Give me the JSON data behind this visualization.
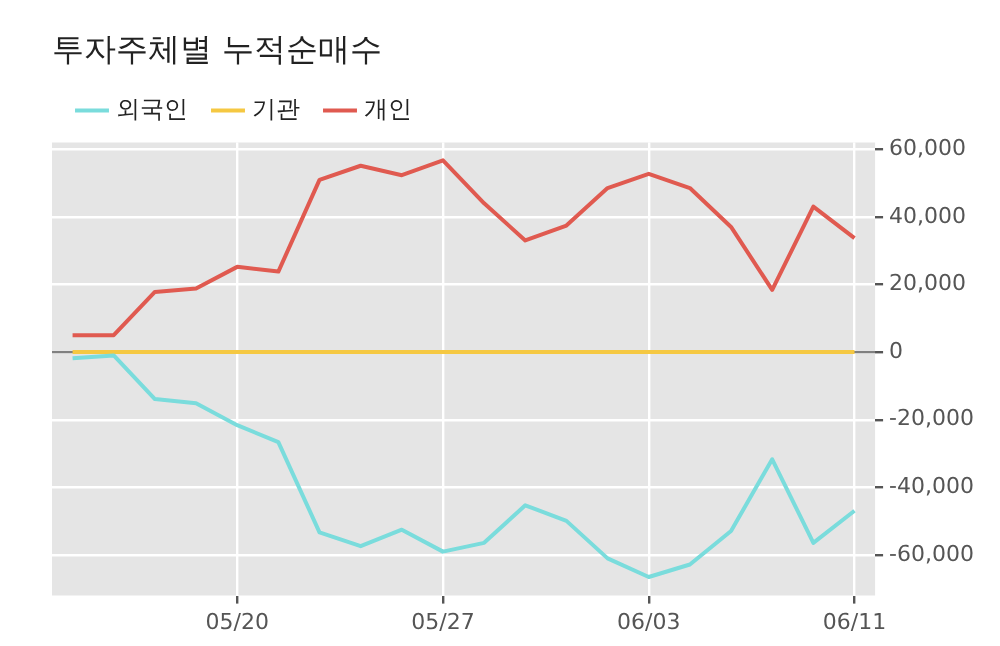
{
  "chart_data": {
    "type": "line",
    "title": "투자주체별 누적순매수",
    "categories": [
      null,
      null,
      null,
      null,
      "05/20",
      null,
      null,
      null,
      null,
      "05/27",
      null,
      null,
      null,
      null,
      "06/03",
      null,
      null,
      null,
      null,
      "06/11"
    ],
    "series": [
      {
        "name": "외국인",
        "color": "#7adcdc",
        "values": [
          -1800,
          -1000,
          -13900,
          -15100,
          -21600,
          -26600,
          -53300,
          -57400,
          -52500,
          -59000,
          -56400,
          -45300,
          -49900,
          -61000,
          -66500,
          -62800,
          -52900,
          -31700,
          -56400,
          -46900
        ]
      },
      {
        "name": "기관",
        "color": "#f5c842",
        "values": [
          0,
          0,
          0,
          0,
          0,
          0,
          0,
          0,
          0,
          0,
          0,
          0,
          0,
          0,
          0,
          0,
          0,
          0,
          0,
          0
        ]
      },
      {
        "name": "개인",
        "color": "#e05a50",
        "values": [
          5000,
          5000,
          17800,
          18800,
          25200,
          23800,
          50900,
          55100,
          52300,
          56700,
          44000,
          33000,
          37400,
          48500,
          52700,
          48500,
          37000,
          18400,
          43000,
          33700
        ]
      }
    ],
    "ylim": [
      -72000,
      62000
    ],
    "yticks": [
      {
        "value": -60000,
        "label": "-60,000"
      },
      {
        "value": -40000,
        "label": "-40,000"
      },
      {
        "value": -20000,
        "label": "-20,000"
      },
      0,
      {
        "value": 20000,
        "label": "20,000"
      },
      {
        "value": 40000,
        "label": "40,000"
      },
      {
        "value": 60000,
        "label": "60,000"
      }
    ],
    "ref_lines": [
      {
        "axis": "y",
        "value": 0,
        "color": "#808080"
      }
    ],
    "grid": true,
    "legend": "top left",
    "marker": "none",
    "line_style": "solid"
  }
}
